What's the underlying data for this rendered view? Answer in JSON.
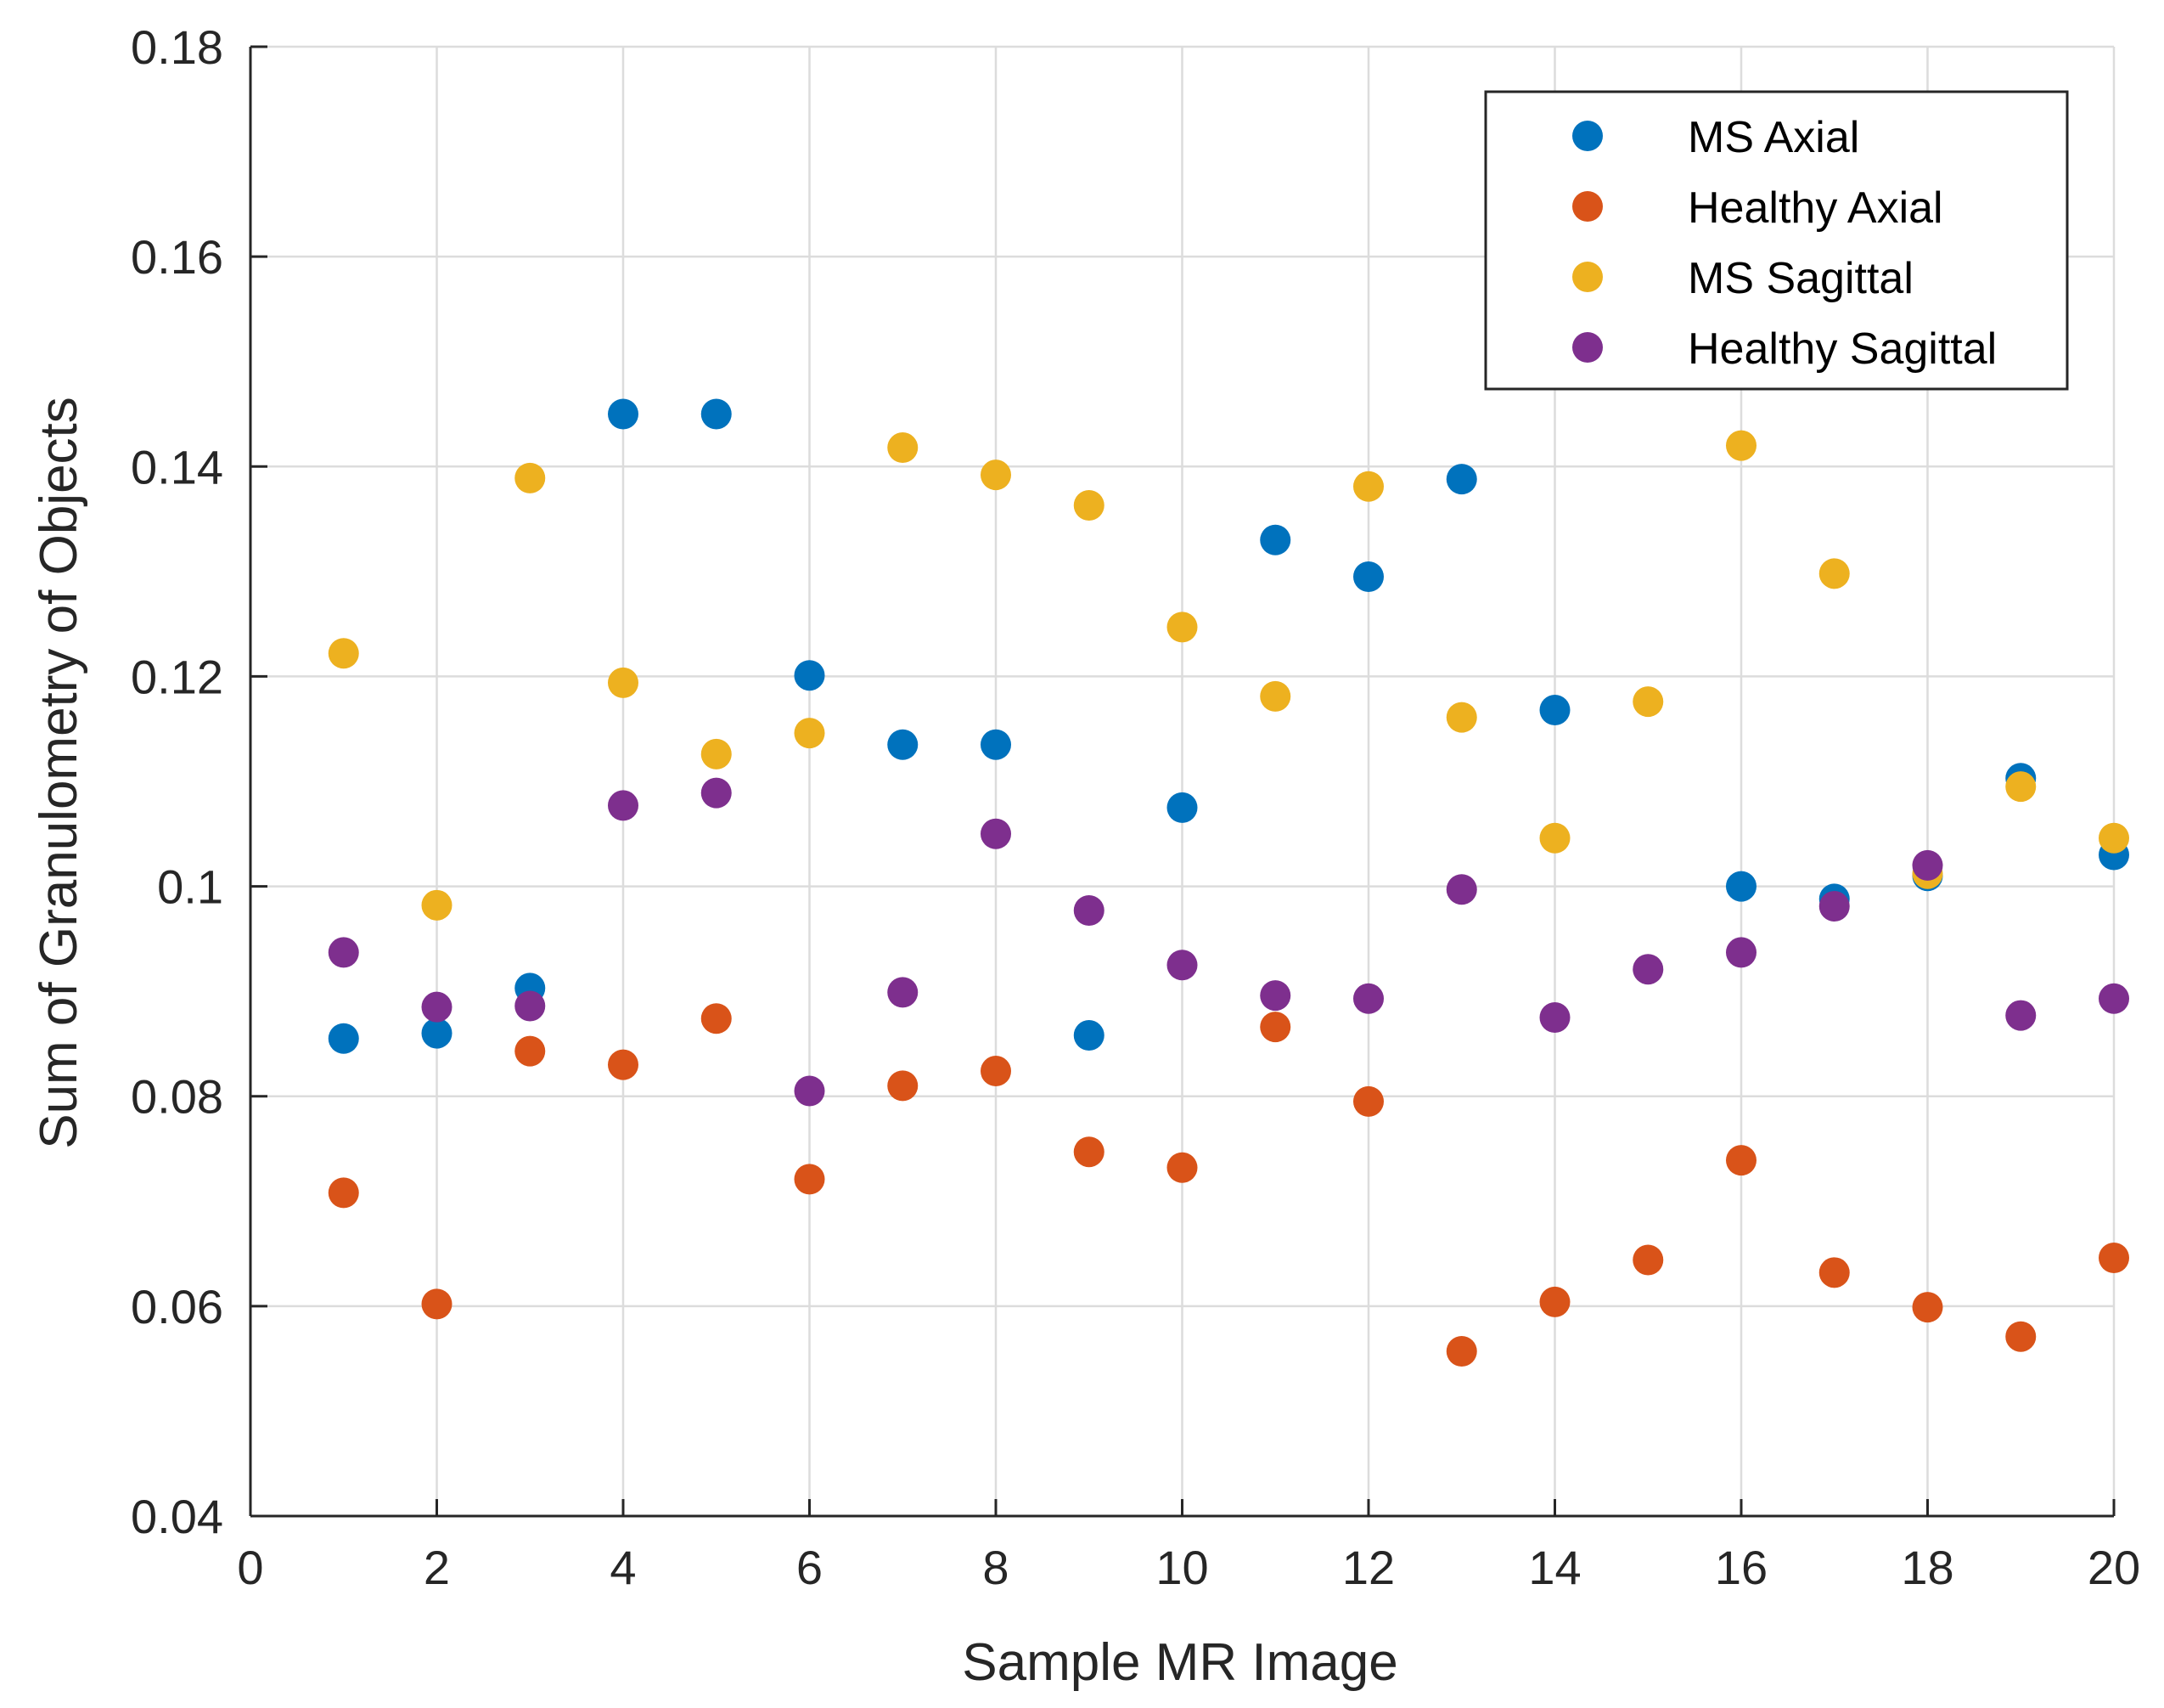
{
  "chart_data": {
    "type": "scatter",
    "title": "",
    "xlabel": "Sample MR Image",
    "ylabel": "Sum of Granulometry of Objects",
    "xlim": [
      0,
      20
    ],
    "ylim": [
      0.04,
      0.18
    ],
    "xticks": [
      0,
      2,
      4,
      6,
      8,
      10,
      12,
      14,
      16,
      18,
      20
    ],
    "xtick_labels": [
      "0",
      "2",
      "4",
      "6",
      "8",
      "10",
      "12",
      "14",
      "16",
      "18",
      "20"
    ],
    "yticks": [
      0.04,
      0.06,
      0.08,
      0.1,
      0.12,
      0.14,
      0.16,
      0.18
    ],
    "ytick_labels": [
      "0.04",
      "0.06",
      "0.08",
      "0.1",
      "0.12",
      "0.14",
      "0.16",
      "0.18"
    ],
    "grid": true,
    "legend_position": "top-right",
    "x": [
      1,
      2,
      3,
      4,
      5,
      6,
      7,
      8,
      9,
      10,
      11,
      12,
      13,
      14,
      15,
      16,
      17,
      18,
      19,
      20
    ],
    "series": [
      {
        "name": "MS Axial",
        "color": "#0072BD",
        "x": [
          1,
          2,
          3,
          4,
          5,
          6,
          7,
          8,
          9,
          10,
          11,
          12,
          13,
          14,
          16,
          17,
          18,
          19,
          20
        ],
        "values": [
          0.0855,
          0.086,
          0.0903,
          0.145,
          0.145,
          0.1201,
          0.1135,
          0.1135,
          0.0858,
          0.1075,
          0.133,
          0.1295,
          0.1388,
          0.1168,
          0.1,
          0.0988,
          0.101,
          0.1103,
          0.103
        ]
      },
      {
        "name": "Healthy Axial",
        "color": "#D95319",
        "x": [
          1,
          2,
          3,
          4,
          5,
          6,
          7,
          8,
          9,
          10,
          11,
          12,
          13,
          14,
          15,
          16,
          17,
          18,
          19,
          20
        ],
        "values": [
          0.0708,
          0.0602,
          0.0843,
          0.083,
          0.0874,
          0.0721,
          0.081,
          0.0824,
          0.0747,
          0.0732,
          0.0866,
          0.0795,
          0.0557,
          0.0604,
          0.0644,
          0.0739,
          0.0632,
          0.0599,
          0.0571,
          0.0646
        ]
      },
      {
        "name": "MS Sagittal",
        "color": "#EDB120",
        "x": [
          1,
          2,
          3,
          4,
          5,
          6,
          7,
          8,
          9,
          10,
          11,
          12,
          13,
          14,
          15,
          16,
          17,
          18,
          19,
          20
        ],
        "values": [
          0.1222,
          0.0982,
          0.1389,
          0.1194,
          0.1126,
          0.1146,
          0.1418,
          0.1392,
          0.1363,
          0.1247,
          0.1181,
          0.1381,
          0.1161,
          0.1046,
          0.1176,
          0.142,
          0.1298,
          0.1012,
          0.1095,
          0.1046
        ]
      },
      {
        "name": "Healthy Sagittal",
        "color": "#7E2F8E",
        "x": [
          1,
          2,
          3,
          4,
          5,
          6,
          7,
          8,
          9,
          10,
          11,
          12,
          13,
          14,
          15,
          16,
          17,
          18,
          19,
          20
        ],
        "values": [
          0.0937,
          0.0885,
          0.0886,
          0.1077,
          0.1089,
          0.0805,
          0.0899,
          0.105,
          0.0977,
          0.0925,
          0.0896,
          0.0893,
          0.0997,
          0.0875,
          0.0921,
          0.0937,
          0.0981,
          0.102,
          0.0877,
          0.0893
        ]
      }
    ]
  }
}
